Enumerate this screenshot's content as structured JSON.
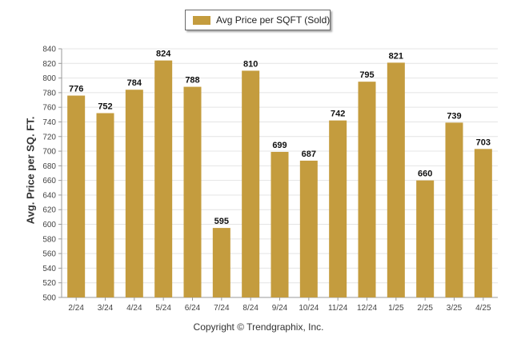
{
  "chart_data": {
    "type": "bar",
    "categories": [
      "2/24",
      "3/24",
      "4/24",
      "5/24",
      "6/24",
      "7/24",
      "8/24",
      "9/24",
      "10/24",
      "11/24",
      "12/24",
      "1/25",
      "2/25",
      "3/25",
      "4/25"
    ],
    "series": [
      {
        "name": "Avg Price per SQFT (Sold)",
        "values": [
          776,
          752,
          784,
          824,
          788,
          595,
          810,
          699,
          687,
          742,
          795,
          821,
          660,
          739,
          703
        ]
      }
    ],
    "ylabel": "Avg. Price per SQ. FT.",
    "xlabel": "",
    "ylim": [
      500,
      840
    ],
    "yticks": [
      500,
      520,
      540,
      560,
      580,
      600,
      620,
      640,
      660,
      680,
      700,
      720,
      740,
      760,
      780,
      800,
      820,
      840
    ],
    "grid": true,
    "legend_position": "top-center",
    "bar_color": "#c49c3e",
    "data_labels": true
  },
  "footer": {
    "copyright": "Copyright © Trendgraphix, Inc."
  }
}
